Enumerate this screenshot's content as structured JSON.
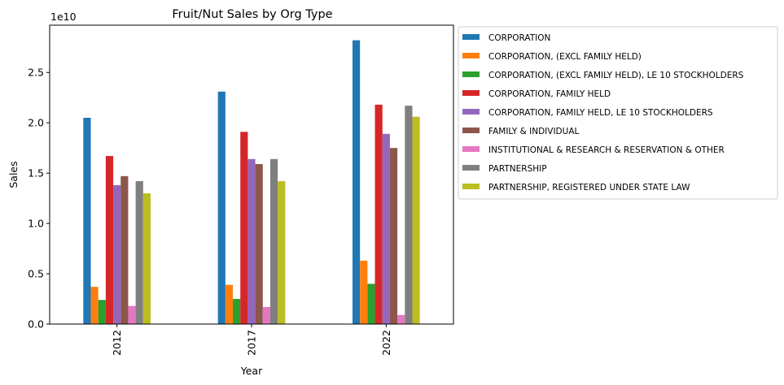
{
  "chart_data": {
    "type": "bar",
    "title": "Fruit/Nut Sales by Org Type",
    "xlabel": "Year",
    "ylabel": "Sales",
    "y_offset_label": "1e10",
    "categories": [
      "2012",
      "2017",
      "2022"
    ],
    "ylim": [
      0,
      2.97
    ],
    "y_ticks": [
      0.0,
      0.5,
      1.0,
      1.5,
      2.0,
      2.5
    ],
    "y_tick_labels": [
      "0.0",
      "0.5",
      "1.0",
      "1.5",
      "2.0",
      "2.5"
    ],
    "units_note": "values in units of 1e10",
    "legend_position": "outside-upper-right",
    "series": [
      {
        "name": " CORPORATION",
        "color": "#1f77b4",
        "values": [
          2.05,
          2.31,
          2.82
        ]
      },
      {
        "name": " CORPORATION, (EXCL FAMILY HELD)",
        "color": "#ff7f0e",
        "values": [
          0.37,
          0.39,
          0.63
        ]
      },
      {
        "name": " CORPORATION, (EXCL FAMILY HELD), LE 10 STOCKHOLDERS",
        "color": "#2ca02c",
        "values": [
          0.24,
          0.25,
          0.4
        ]
      },
      {
        "name": " CORPORATION, FAMILY HELD",
        "color": "#d62728",
        "values": [
          1.67,
          1.91,
          2.18
        ]
      },
      {
        "name": " CORPORATION, FAMILY HELD, LE 10 STOCKHOLDERS",
        "color": "#9467bd",
        "values": [
          1.38,
          1.64,
          1.89
        ]
      },
      {
        "name": " FAMILY & INDIVIDUAL",
        "color": "#8c564b",
        "values": [
          1.47,
          1.59,
          1.75
        ]
      },
      {
        "name": " INSTITUTIONAL & RESEARCH & RESERVATION & OTHER",
        "color": "#e377c2",
        "values": [
          0.18,
          0.17,
          0.09
        ]
      },
      {
        "name": " PARTNERSHIP",
        "color": "#7f7f7f",
        "values": [
          1.42,
          1.64,
          2.17
        ]
      },
      {
        "name": " PARTNERSHIP, REGISTERED UNDER STATE LAW",
        "color": "#bcbd22",
        "values": [
          1.3,
          1.42,
          2.06
        ]
      }
    ]
  }
}
